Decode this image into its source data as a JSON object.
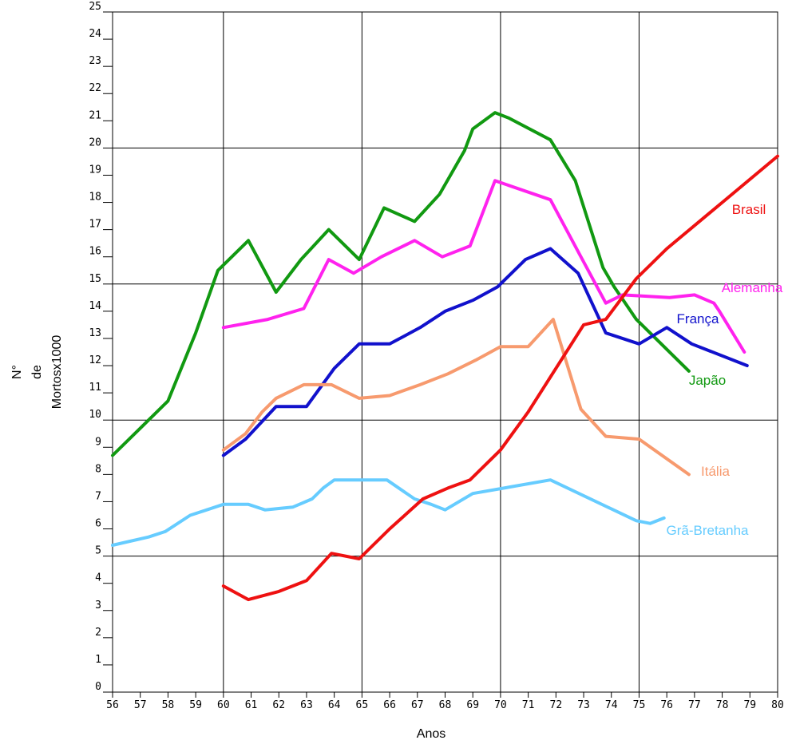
{
  "chart_data": {
    "type": "line",
    "title": "",
    "xlabel": "Anos",
    "ylabel_lines": [
      "N°",
      "de",
      "Mortosx1000"
    ],
    "xlim": [
      56,
      80
    ],
    "ylim": [
      0,
      25
    ],
    "x_ticks": [
      "56",
      "57",
      "58",
      "59",
      "60",
      "61",
      "62",
      "63",
      "64",
      "65",
      "66",
      "67",
      "68",
      "69",
      "70",
      "71",
      "72",
      "73",
      "74",
      "75",
      "76",
      "77",
      "78",
      "79",
      "80"
    ],
    "y_ticks": [
      "0",
      "1",
      "2",
      "3",
      "4",
      "5",
      "6",
      "7",
      "8",
      "9",
      "10",
      "11",
      "12",
      "13",
      "14",
      "15",
      "16",
      "17",
      "18",
      "19",
      "20",
      "21",
      "22",
      "23",
      "24",
      "25"
    ],
    "major_grid_x": [
      60,
      65,
      70,
      75
    ],
    "major_grid_y": [
      5,
      10,
      15,
      20
    ],
    "grid": true,
    "legend": "inline labels",
    "series": [
      {
        "name": "Japão",
        "color": "#119911",
        "points": [
          [
            56,
            8.7
          ],
          [
            57,
            9.7
          ],
          [
            58,
            10.7
          ],
          [
            59,
            13.2
          ],
          [
            59.8,
            15.5
          ],
          [
            60.9,
            16.6
          ],
          [
            61.9,
            14.7
          ],
          [
            62.8,
            15.9
          ],
          [
            63.8,
            17.0
          ],
          [
            64.9,
            15.9
          ],
          [
            65.8,
            17.8
          ],
          [
            66.9,
            17.3
          ],
          [
            67.8,
            18.3
          ],
          [
            68.7,
            19.9
          ],
          [
            69.0,
            20.7
          ],
          [
            69.8,
            21.3
          ],
          [
            70.3,
            21.1
          ],
          [
            71.8,
            20.3
          ],
          [
            72.7,
            18.8
          ],
          [
            73.7,
            15.6
          ],
          [
            74.1,
            14.9
          ],
          [
            74.9,
            13.7
          ],
          [
            76.8,
            11.8
          ]
        ]
      },
      {
        "name": "Alemanha",
        "color": "#ff22ee",
        "points": [
          [
            60,
            13.4
          ],
          [
            61.6,
            13.7
          ],
          [
            62.9,
            14.1
          ],
          [
            63.8,
            15.9
          ],
          [
            64.7,
            15.4
          ],
          [
            65.7,
            16.0
          ],
          [
            66.9,
            16.6
          ],
          [
            67.9,
            16.0
          ],
          [
            68.9,
            16.4
          ],
          [
            69.8,
            18.8
          ],
          [
            71.8,
            18.1
          ],
          [
            72.9,
            16.0
          ],
          [
            73.8,
            14.3
          ],
          [
            74.4,
            14.6
          ],
          [
            76.1,
            14.5
          ],
          [
            77.0,
            14.6
          ],
          [
            77.7,
            14.3
          ],
          [
            77.9,
            14.0
          ],
          [
            78.8,
            12.5
          ]
        ]
      },
      {
        "name": "França",
        "color": "#1111cc",
        "points": [
          [
            60,
            8.7
          ],
          [
            60.8,
            9.3
          ],
          [
            61.9,
            10.5
          ],
          [
            63.0,
            10.5
          ],
          [
            64.0,
            11.9
          ],
          [
            64.9,
            12.8
          ],
          [
            66.0,
            12.8
          ],
          [
            67.1,
            13.4
          ],
          [
            68.0,
            14.0
          ],
          [
            69.0,
            14.4
          ],
          [
            69.9,
            14.9
          ],
          [
            70.9,
            15.9
          ],
          [
            71.8,
            16.3
          ],
          [
            72.8,
            15.4
          ],
          [
            73.8,
            13.2
          ],
          [
            75.0,
            12.8
          ],
          [
            76.0,
            13.4
          ],
          [
            76.9,
            12.8
          ],
          [
            78.9,
            12.0
          ]
        ]
      },
      {
        "name": "Itália",
        "color": "#f79a6e",
        "points": [
          [
            60,
            8.9
          ],
          [
            60.8,
            9.5
          ],
          [
            61.4,
            10.3
          ],
          [
            61.9,
            10.8
          ],
          [
            62.9,
            11.3
          ],
          [
            63.9,
            11.3
          ],
          [
            64.9,
            10.8
          ],
          [
            66.0,
            10.9
          ],
          [
            67.1,
            11.3
          ],
          [
            68.1,
            11.7
          ],
          [
            69.1,
            12.2
          ],
          [
            70.0,
            12.7
          ],
          [
            71.0,
            12.7
          ],
          [
            71.9,
            13.7
          ],
          [
            72.9,
            10.4
          ],
          [
            73.8,
            9.4
          ],
          [
            75.0,
            9.3
          ],
          [
            76.8,
            8.0
          ]
        ]
      },
      {
        "name": "Grã-Bretanha",
        "color": "#66ccff",
        "points": [
          [
            56,
            5.4
          ],
          [
            57.3,
            5.7
          ],
          [
            57.9,
            5.9
          ],
          [
            58.8,
            6.5
          ],
          [
            59.4,
            6.7
          ],
          [
            60.0,
            6.9
          ],
          [
            60.9,
            6.9
          ],
          [
            61.5,
            6.7
          ],
          [
            62.5,
            6.8
          ],
          [
            63.2,
            7.1
          ],
          [
            63.6,
            7.5
          ],
          [
            64.0,
            7.8
          ],
          [
            65.9,
            7.8
          ],
          [
            66.9,
            7.1
          ],
          [
            67.5,
            6.9
          ],
          [
            68.0,
            6.7
          ],
          [
            69.0,
            7.3
          ],
          [
            71.8,
            7.8
          ],
          [
            74.9,
            6.3
          ],
          [
            75.4,
            6.2
          ],
          [
            75.9,
            6.4
          ]
        ]
      },
      {
        "name": "Brasil",
        "color": "#ee1111",
        "points": [
          [
            60,
            3.9
          ],
          [
            60.9,
            3.4
          ],
          [
            62.0,
            3.7
          ],
          [
            63.0,
            4.1
          ],
          [
            63.9,
            5.1
          ],
          [
            64.9,
            4.9
          ],
          [
            66.0,
            6.0
          ],
          [
            67.2,
            7.1
          ],
          [
            68.1,
            7.5
          ],
          [
            68.9,
            7.8
          ],
          [
            70.0,
            8.9
          ],
          [
            71.0,
            10.3
          ],
          [
            73.0,
            13.5
          ],
          [
            73.8,
            13.7
          ],
          [
            74.9,
            15.2
          ],
          [
            76.0,
            16.3
          ],
          [
            78.0,
            18.0
          ],
          [
            80.0,
            19.7
          ]
        ]
      }
    ]
  }
}
